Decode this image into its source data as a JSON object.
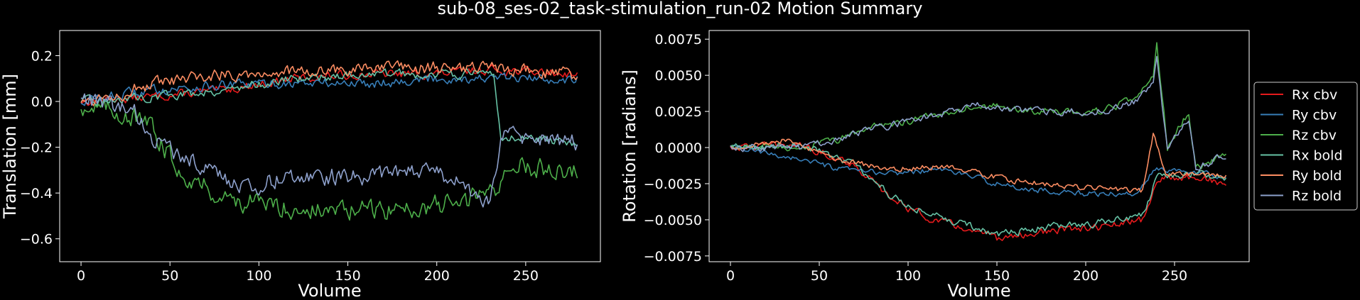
{
  "figure": {
    "title": "sub-08_ses-02_task-stimulation_run-02 Motion Summary",
    "background": "#000000",
    "foreground": "#ffffff"
  },
  "chart_data": [
    {
      "type": "line",
      "xlabel": "Volume",
      "ylabel": "Translation [mm]",
      "xlim": [
        -12,
        292
      ],
      "ylim": [
        -0.7,
        0.31
      ],
      "xticks": [
        0,
        50,
        100,
        150,
        200,
        250
      ],
      "yticks": [
        -0.6,
        -0.4,
        -0.2,
        0.0,
        0.2
      ],
      "ytick_labels": [
        "−0.6",
        "−0.4",
        "−0.2",
        "0.0",
        "0.2"
      ],
      "grid": false,
      "x_range": [
        0,
        279
      ],
      "series": [
        {
          "color": "#e41a1c",
          "anchors": [
            [
              0,
              0.0
            ],
            [
              40,
              0.02
            ],
            [
              80,
              0.05
            ],
            [
              120,
              0.1
            ],
            [
              160,
              0.12
            ],
            [
              200,
              0.12
            ],
            [
              230,
              0.14
            ],
            [
              279,
              0.12
            ]
          ],
          "noise": 0.03
        },
        {
          "color": "#377eb8",
          "anchors": [
            [
              0,
              0.0
            ],
            [
              40,
              0.05
            ],
            [
              80,
              0.07
            ],
            [
              120,
              0.08
            ],
            [
              160,
              0.08
            ],
            [
              200,
              0.1
            ],
            [
              230,
              0.1
            ],
            [
              279,
              0.1
            ]
          ],
          "noise": 0.035
        },
        {
          "color": "#4daf4a",
          "anchors": [
            [
              0,
              -0.02
            ],
            [
              25,
              -0.05
            ],
            [
              40,
              -0.12
            ],
            [
              55,
              -0.3
            ],
            [
              80,
              -0.42
            ],
            [
              100,
              -0.45
            ],
            [
              140,
              -0.48
            ],
            [
              180,
              -0.47
            ],
            [
              215,
              -0.44
            ],
            [
              233,
              -0.38
            ],
            [
              240,
              -0.28
            ],
            [
              279,
              -0.3
            ]
          ],
          "noise": 0.07
        },
        {
          "color": "#66c2a5",
          "anchors": [
            [
              0,
              0.0
            ],
            [
              40,
              0.02
            ],
            [
              80,
              0.05
            ],
            [
              120,
              0.1
            ],
            [
              160,
              0.12
            ],
            [
              200,
              0.12
            ],
            [
              232,
              0.12
            ],
            [
              236,
              -0.15
            ],
            [
              279,
              -0.18
            ]
          ],
          "noise": 0.03
        },
        {
          "color": "#fc8d62",
          "anchors": [
            [
              0,
              0.0
            ],
            [
              40,
              0.07
            ],
            [
              80,
              0.12
            ],
            [
              120,
              0.13
            ],
            [
              160,
              0.14
            ],
            [
              200,
              0.15
            ],
            [
              230,
              0.14
            ],
            [
              279,
              0.12
            ]
          ],
          "noise": 0.045
        },
        {
          "color": "#8da0cb",
          "anchors": [
            [
              0,
              0.02
            ],
            [
              30,
              -0.05
            ],
            [
              45,
              -0.2
            ],
            [
              70,
              -0.28
            ],
            [
              90,
              -0.38
            ],
            [
              120,
              -0.32
            ],
            [
              160,
              -0.33
            ],
            [
              200,
              -0.3
            ],
            [
              230,
              -0.45
            ],
            [
              236,
              -0.15
            ],
            [
              279,
              -0.18
            ]
          ],
          "noise": 0.06
        }
      ]
    },
    {
      "type": "line",
      "xlabel": "Volume",
      "ylabel": "Rotation [radians]",
      "xlim": [
        -12,
        292
      ],
      "ylim": [
        -0.0079,
        0.0081
      ],
      "xticks": [
        0,
        50,
        100,
        150,
        200,
        250
      ],
      "yticks": [
        -0.0075,
        -0.005,
        -0.0025,
        0.0,
        0.0025,
        0.005,
        0.0075
      ],
      "ytick_labels": [
        "−0.0075",
        "−0.0050",
        "−0.0025",
        "0.0000",
        "0.0025",
        "0.0050",
        "0.0075"
      ],
      "grid": false,
      "x_range": [
        0,
        279
      ],
      "legend": {
        "placement": "right",
        "entries": [
          "Rx cbv",
          "Ry cbv",
          "Rz cbv",
          "Rx bold",
          "Ry bold",
          "Rz bold"
        ]
      },
      "series": [
        {
          "name": "Rx cbv",
          "color": "#e41a1c",
          "anchors": [
            [
              0,
              0.0
            ],
            [
              40,
              0.0002
            ],
            [
              70,
              -0.0012
            ],
            [
              90,
              -0.0035
            ],
            [
              110,
              -0.0048
            ],
            [
              150,
              -0.0063
            ],
            [
              180,
              -0.0058
            ],
            [
              210,
              -0.0055
            ],
            [
              233,
              -0.005
            ],
            [
              240,
              -0.0022
            ],
            [
              260,
              -0.002
            ],
            [
              279,
              -0.0025
            ]
          ],
          "noise": 0.0004
        },
        {
          "name": "Ry cbv",
          "color": "#377eb8",
          "anchors": [
            [
              0,
              0.0
            ],
            [
              40,
              -0.0008
            ],
            [
              60,
              -0.0015
            ],
            [
              90,
              -0.0018
            ],
            [
              120,
              -0.0015
            ],
            [
              160,
              -0.0028
            ],
            [
              200,
              -0.0032
            ],
            [
              230,
              -0.0032
            ],
            [
              238,
              -0.0015
            ],
            [
              255,
              -0.0015
            ],
            [
              279,
              -0.002
            ]
          ],
          "noise": 0.0003
        },
        {
          "name": "Rz cbv",
          "color": "#4daf4a",
          "anchors": [
            [
              0,
              0.0
            ],
            [
              40,
              0.0
            ],
            [
              60,
              0.0005
            ],
            [
              80,
              0.0015
            ],
            [
              100,
              0.0018
            ],
            [
              140,
              0.003
            ],
            [
              170,
              0.0025
            ],
            [
              210,
              0.0025
            ],
            [
              230,
              0.0035
            ],
            [
              238,
              0.005
            ],
            [
              240,
              0.0072
            ],
            [
              246,
              0.0
            ],
            [
              258,
              0.0025
            ],
            [
              262,
              -0.0015
            ],
            [
              279,
              -0.0005
            ]
          ],
          "noise": 0.0004
        },
        {
          "name": "Rx bold",
          "color": "#66c2a5",
          "anchors": [
            [
              0,
              0.0
            ],
            [
              40,
              0.0002
            ],
            [
              70,
              -0.0012
            ],
            [
              90,
              -0.0033
            ],
            [
              110,
              -0.0045
            ],
            [
              150,
              -0.006
            ],
            [
              180,
              -0.0055
            ],
            [
              210,
              -0.0052
            ],
            [
              233,
              -0.0047
            ],
            [
              240,
              -0.002
            ],
            [
              260,
              -0.0018
            ],
            [
              279,
              -0.0022
            ]
          ],
          "noise": 0.0004
        },
        {
          "name": "Ry bold",
          "color": "#fc8d62",
          "anchors": [
            [
              0,
              0.0
            ],
            [
              30,
              0.0005
            ],
            [
              60,
              -0.0008
            ],
            [
              90,
              -0.0015
            ],
            [
              120,
              -0.0013
            ],
            [
              160,
              -0.0023
            ],
            [
              200,
              -0.0028
            ],
            [
              232,
              -0.003
            ],
            [
              238,
              0.001
            ],
            [
              245,
              -0.0018
            ],
            [
              279,
              -0.002
            ]
          ],
          "noise": 0.0003
        },
        {
          "name": "Rz bold",
          "color": "#8da0cb",
          "anchors": [
            [
              0,
              0.0
            ],
            [
              40,
              0.0
            ],
            [
              60,
              0.0005
            ],
            [
              80,
              0.0013
            ],
            [
              100,
              0.0018
            ],
            [
              140,
              0.003
            ],
            [
              170,
              0.0025
            ],
            [
              210,
              0.0025
            ],
            [
              230,
              0.0033
            ],
            [
              238,
              0.0045
            ],
            [
              240,
              0.006
            ],
            [
              246,
              0.0
            ],
            [
              258,
              0.002
            ],
            [
              262,
              -0.0015
            ],
            [
              279,
              -0.0005
            ]
          ],
          "noise": 0.0004
        }
      ]
    }
  ]
}
